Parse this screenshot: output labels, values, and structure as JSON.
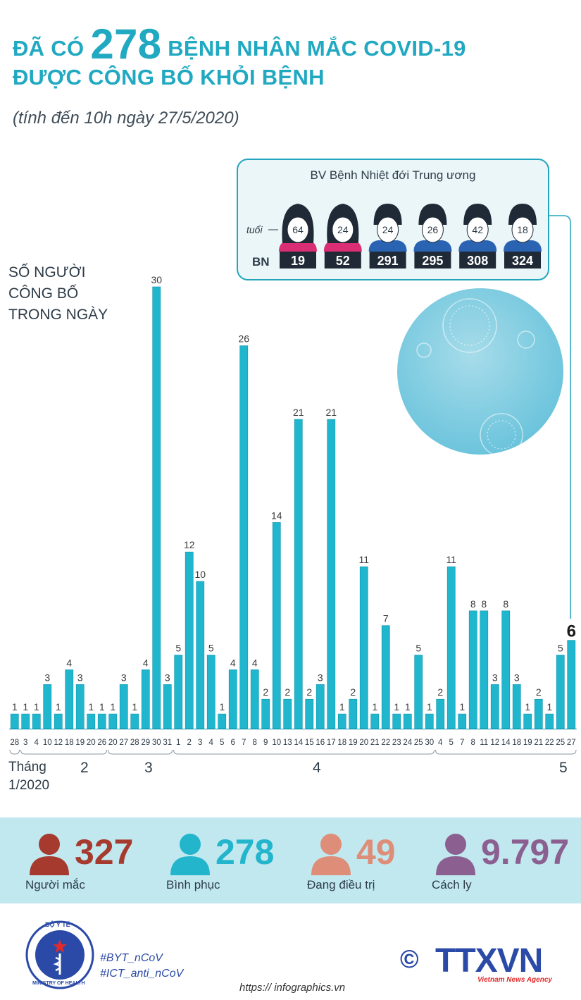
{
  "title": {
    "pre": "ĐÃ CÓ",
    "number": "278",
    "post": "BỆNH NHÂN MẮC COVID-19",
    "line2": "ĐƯỢC CÔNG BỐ KHỎI BỆNH",
    "subtitle": "(tính đến 10h ngày 27/5/2020)"
  },
  "ylabel_lines": [
    "SỐ NGƯỜI",
    "CÔNG BỐ",
    "TRONG NGÀY"
  ],
  "hospital": {
    "name": "BV Bệnh Nhiệt đới Trung ương",
    "age_label": "tuổi",
    "bn_label": "BN",
    "patients": [
      {
        "gender": "female",
        "age": "64",
        "bn": "19"
      },
      {
        "gender": "female",
        "age": "24",
        "bn": "52"
      },
      {
        "gender": "male",
        "age": "24",
        "bn": "291"
      },
      {
        "gender": "male",
        "age": "26",
        "bn": "295"
      },
      {
        "gender": "male",
        "age": "42",
        "bn": "308"
      },
      {
        "gender": "male",
        "age": "18",
        "bn": "324"
      }
    ]
  },
  "chart_data": {
    "type": "bar",
    "ylabel": "SỐ NGƯỜI CÔNG BỐ TRONG NGÀY",
    "categories": [
      "28",
      "3",
      "4",
      "10",
      "12",
      "18",
      "19",
      "20",
      "26",
      "20",
      "27",
      "28",
      "29",
      "30",
      "31",
      "1",
      "2",
      "3",
      "4",
      "5",
      "6",
      "7",
      "8",
      "9",
      "10",
      "13",
      "14",
      "15",
      "16",
      "17",
      "18",
      "19",
      "20",
      "21",
      "22",
      "23",
      "24",
      "25",
      "30",
      "4",
      "5",
      "7",
      "8",
      "11",
      "12",
      "14",
      "18",
      "19",
      "21",
      "22",
      "25",
      "27"
    ],
    "values": [
      1,
      1,
      1,
      3,
      1,
      4,
      3,
      1,
      1,
      1,
      3,
      1,
      4,
      30,
      3,
      5,
      12,
      10,
      5,
      1,
      4,
      26,
      4,
      2,
      14,
      2,
      21,
      2,
      3,
      21,
      1,
      2,
      11,
      1,
      7,
      1,
      1,
      5,
      1,
      2,
      11,
      1,
      8,
      8,
      3,
      8,
      3,
      1,
      2,
      1,
      5,
      6
    ],
    "month_groups": [
      {
        "label": "Tháng 1/2020",
        "from": 0,
        "to": 0
      },
      {
        "label": "2",
        "from": 1,
        "to": 8
      },
      {
        "label": "3",
        "from": 9,
        "to": 14
      },
      {
        "label": "4",
        "from": 15,
        "to": 38
      },
      {
        "label": "5",
        "from": 39,
        "to": 51
      }
    ],
    "highlight_last": true,
    "colors": {
      "bar": "#1fb6ce",
      "bar_stroke": "#1195ac"
    }
  },
  "month_labels": {
    "m1a": "Tháng",
    "m1b": "1/2020",
    "m2": "2",
    "m3": "3",
    "m4": "4",
    "m5": "5"
  },
  "stats": [
    {
      "value": "327",
      "label": "Người mắc",
      "color": "#a63a2e",
      "icon": "person-icon"
    },
    {
      "value": "278",
      "label": "Bình phục",
      "color": "#22b5cc",
      "icon": "person-icon"
    },
    {
      "value": "49",
      "label": "Đang điều trị",
      "color": "#de8e78",
      "icon": "person-icon"
    },
    {
      "value": "9.797",
      "label": "Cách ly",
      "color": "#8c5f91",
      "icon": "person-icon"
    }
  ],
  "footer": {
    "hashtags": [
      "#BYT_nCoV",
      "#ICT_anti_nCoV"
    ],
    "seal_top": "BỘ Y TẾ",
    "seal_bottom": "MINISTRY OF HEALTH",
    "copyright": "©",
    "brand": "TTXVN",
    "brand_sub": "Vietnam News Agency",
    "url": "https:// infographics.vn"
  }
}
